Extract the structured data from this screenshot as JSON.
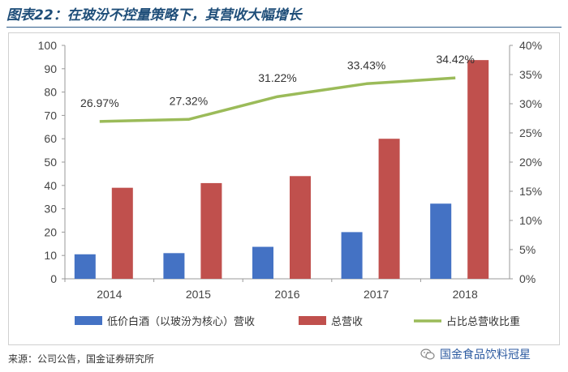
{
  "header": {
    "title": "图表22：在玻汾不控量策略下，其营收大幅增长"
  },
  "footer": {
    "source": "来源：公司公告，国金证券研究所",
    "watermark": "国金食品饮料冠星"
  },
  "colors": {
    "bar_lowprice": "#4472c4",
    "bar_total": "#c0504d",
    "line_share": "#9bbb59"
  },
  "chart_data": {
    "type": "bar",
    "categories": [
      "2014",
      "2015",
      "2016",
      "2017",
      "2018"
    ],
    "series": [
      {
        "name": "低价白酒（以玻汾为核心）营收",
        "type": "bar",
        "axis": "left",
        "values": [
          10.5,
          11.0,
          13.7,
          20.0,
          32.2
        ]
      },
      {
        "name": "总营收",
        "type": "bar",
        "axis": "left",
        "values": [
          39.0,
          41.0,
          44.0,
          60.0,
          93.7
        ]
      },
      {
        "name": "占比总营收比重",
        "type": "line",
        "axis": "right",
        "values": [
          26.97,
          27.32,
          31.22,
          33.43,
          34.42
        ],
        "labels": [
          "26.97%",
          "27.32%",
          "31.22%",
          "33.43%",
          "34.42%"
        ]
      }
    ],
    "ylim": [
      0,
      100
    ],
    "yticks": [
      "0",
      "10",
      "20",
      "30",
      "40",
      "50",
      "60",
      "70",
      "80",
      "90",
      "100"
    ],
    "y2lim": [
      0,
      40
    ],
    "y2ticks": [
      "0%",
      "5%",
      "10%",
      "15%",
      "20%",
      "25%",
      "30%",
      "35%",
      "40%"
    ],
    "legend_position": "bottom",
    "grid": false
  }
}
